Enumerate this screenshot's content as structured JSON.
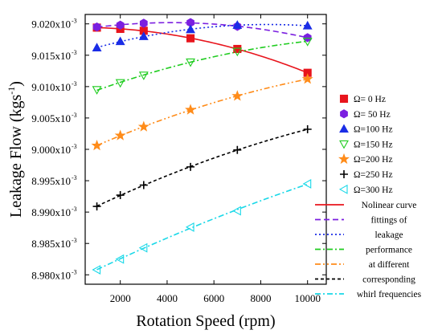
{
  "chart_data": {
    "type": "scatter",
    "xlabel": "Rotation Speed (rpm)",
    "ylabel": {
      "main": "Leakage Flow (kgs",
      "sup": "-1",
      "close": ")"
    },
    "xlim": [
      500,
      10800
    ],
    "ylim": [
      8.9785,
      9.0215
    ],
    "x_ticks": [
      2000,
      4000,
      6000,
      8000,
      10000
    ],
    "x_tick_labels": [
      "2000",
      "4000",
      "6000",
      "8000",
      "10000"
    ],
    "y_ticks": [
      8.98,
      8.985,
      8.99,
      8.995,
      9.0,
      9.005,
      9.01,
      9.015,
      9.02
    ],
    "y_tick_labels": [
      "8.980x10",
      "8.985x10",
      "8.990x10",
      "8.995x10",
      "9.000x10",
      "9.005x10",
      "9.010x10",
      "9.015x10",
      "9.020x10"
    ],
    "y_tick_exponent": "-3",
    "x": [
      1000,
      2000,
      3000,
      5000,
      7000,
      10000
    ],
    "series": [
      {
        "name": "Ω=   0 Hz",
        "marker": "square",
        "filled": true,
        "color": "#e8141c",
        "values": [
          9.0194,
          9.0192,
          9.0189,
          9.0177,
          9.016,
          9.0122
        ]
      },
      {
        "name": "Ω=  50 Hz",
        "marker": "hexagon",
        "filled": true,
        "color": "#7b1fe0",
        "values": [
          9.0195,
          9.0198,
          9.0201,
          9.0202,
          9.0196,
          9.0178
        ]
      },
      {
        "name": "Ω=100 Hz",
        "marker": "triangle-up",
        "filled": true,
        "color": "#1a2de6",
        "values": [
          9.0162,
          9.0172,
          9.018,
          9.0191,
          9.0198,
          9.0197
        ]
      },
      {
        "name": "Ω=150 Hz",
        "marker": "triangle-down",
        "filled": false,
        "color": "#1fcc1f",
        "values": [
          9.0095,
          9.0106,
          9.0118,
          9.0139,
          9.0156,
          9.0172
        ]
      },
      {
        "name": "Ω=200 Hz",
        "marker": "star",
        "filled": true,
        "color": "#ff8c1a",
        "values": [
          9.0006,
          9.0022,
          9.0036,
          9.0063,
          9.0085,
          9.0112
        ]
      },
      {
        "name": "Ω=250 Hz",
        "marker": "plus",
        "filled": false,
        "color": "#000000",
        "values": [
          8.9909,
          8.9927,
          8.9943,
          8.9972,
          8.9999,
          9.0032
        ]
      },
      {
        "name": "Ω=300 Hz",
        "marker": "triangle-left",
        "filled": false,
        "color": "#19d8e8",
        "values": [
          8.9808,
          8.9825,
          8.9843,
          8.9876,
          8.9902,
          8.9945
        ]
      }
    ],
    "fit_legend": [
      {
        "label": "Nolinear curve",
        "color": "#e8141c",
        "dash": "solid"
      },
      {
        "label": "fittings of",
        "color": "#7b1fe0",
        "dash": "dash"
      },
      {
        "label": "leakage",
        "color": "#1a2de6",
        "dash": "dot"
      },
      {
        "label": "performance",
        "color": "#1fcc1f",
        "dash": "dashdot"
      },
      {
        "label": "at different",
        "color": "#ff8c1a",
        "dash": "dashdotdot"
      },
      {
        "label": "corresponding",
        "color": "#000000",
        "dash": "shortdash"
      },
      {
        "label": "whirl frequencies",
        "color": "#19d8e8",
        "dash": "dashdot"
      }
    ],
    "grid": false,
    "legend_position": "right"
  }
}
